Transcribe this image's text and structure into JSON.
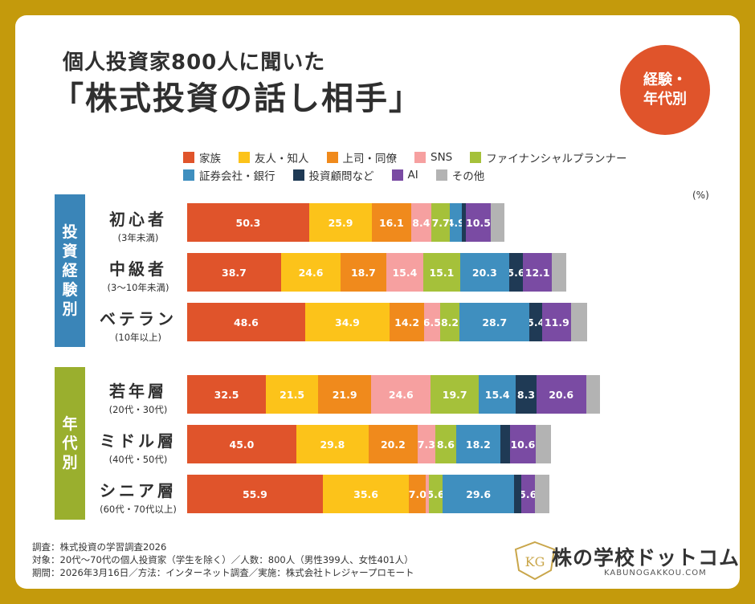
{
  "header": {
    "title_line1": "個人投資家800人に聞いた",
    "title_line2": "「株式投資の話し相手」",
    "badge_line1": "経験・",
    "badge_line2": "年代別"
  },
  "chart_data": {
    "type": "bar",
    "orientation": "horizontal",
    "stacked": true,
    "unit": "(%)",
    "legend": [
      "家族",
      "友人・知人",
      "上司・同僚",
      "SNS",
      "ファイナンシャルプランナー",
      "証券会社・銀行",
      "投資顧問など",
      "AI",
      "その他"
    ],
    "colors": {
      "家族": "#e0542b",
      "友人・知人": "#fcc31a",
      "上司・同僚": "#f08a1c",
      "SNS": "#f6a0a0",
      "ファイナンシャルプランナー": "#a5c13a",
      "証券会社・銀行": "#3f8fbf",
      "投資顧問など": "#1f3a55",
      "AI": "#7a4ba3",
      "その他": "#b3b3b3"
    },
    "groups": [
      {
        "label": "投資経験別",
        "chars": [
          "投",
          "資",
          "経",
          "験",
          "別"
        ],
        "color": "#3a85b8"
      },
      {
        "label": "年代別",
        "chars": [
          "年",
          "代",
          "別"
        ],
        "color": "#9aaf2e"
      }
    ],
    "categories": [
      {
        "name": "初心者",
        "sub": "(3年未満)",
        "group": 0,
        "values": [
          50.3,
          25.9,
          16.1,
          8.4,
          7.7,
          4.9,
          1.5,
          10.5,
          5.5
        ],
        "labels": [
          "50.3",
          "25.9",
          "16.1",
          "8.4",
          "7.7",
          "4.9",
          "",
          "10.5",
          ""
        ]
      },
      {
        "name": "中級者",
        "sub": "(3〜10年未満)",
        "group": 0,
        "values": [
          38.7,
          24.6,
          18.7,
          15.4,
          15.1,
          20.3,
          5.6,
          12.1,
          5.8
        ],
        "labels": [
          "38.7",
          "24.6",
          "18.7",
          "15.4",
          "15.1",
          "20.3",
          "5.6",
          "12.1",
          ""
        ]
      },
      {
        "name": "ベテラン",
        "sub": "(10年以上)",
        "group": 0,
        "values": [
          48.6,
          34.9,
          14.2,
          6.5,
          8.2,
          28.7,
          5.4,
          11.9,
          6.5
        ],
        "labels": [
          "48.6",
          "34.9",
          "14.2",
          "6.5",
          "8.2",
          "28.7",
          "5.4",
          "11.9",
          ""
        ]
      },
      {
        "name": "若年層",
        "sub": "(20代・30代)",
        "group": 1,
        "values": [
          32.5,
          21.5,
          21.9,
          24.6,
          19.7,
          15.4,
          8.3,
          20.6,
          5.8
        ],
        "labels": [
          "32.5",
          "21.5",
          "21.9",
          "24.6",
          "19.7",
          "15.4",
          "8.3",
          "20.6",
          ""
        ]
      },
      {
        "name": "ミドル層",
        "sub": "(40代・50代)",
        "group": 1,
        "values": [
          45.0,
          29.8,
          20.2,
          7.3,
          8.6,
          18.2,
          4.0,
          10.6,
          6.3
        ],
        "labels": [
          "45.0",
          "29.8",
          "20.2",
          "7.3",
          "8.6",
          "18.2",
          "",
          "10.6",
          ""
        ]
      },
      {
        "name": "シニア層",
        "sub": "(60代・70代以上)",
        "group": 1,
        "values": [
          55.9,
          35.6,
          7.0,
          1.2,
          5.6,
          29.6,
          2.8,
          5.6,
          6.2
        ],
        "labels": [
          "55.9",
          "35.6",
          "7.0",
          "",
          "5.6",
          "29.6",
          "",
          "5.6",
          ""
        ]
      }
    ]
  },
  "footer": {
    "line1": "調査：株式投資の学習調査2026",
    "line2": "対象：20代〜70代の個人投資家（学生を除く）／人数：800人（男性399人、女性401人）",
    "line3": "期間：2026年3月16日／方法：インターネット調査／実施：株式会社トレジャープロモート",
    "logo_text": "KG",
    "brand": "株の学校ドットコム",
    "brand_url": "KABUNOGAKKOU.COM"
  }
}
